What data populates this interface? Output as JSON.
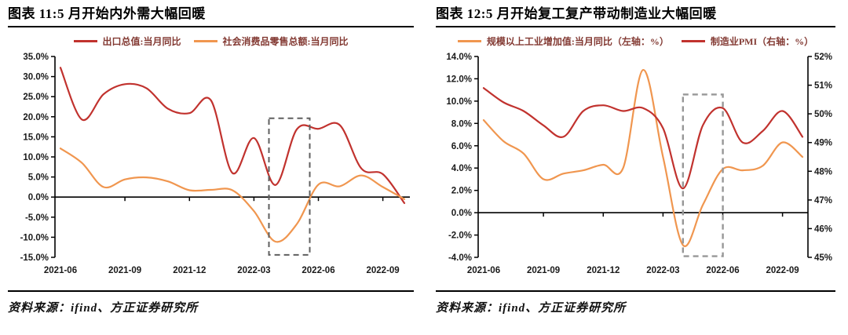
{
  "source_note": "资料来源：ifind、方正证券研究所",
  "colors": {
    "line_red": "#c1322e",
    "line_orange": "#f0964f",
    "legend_text": "#833a33",
    "axis_text": "#1a1a1a",
    "axis_line": "#000000"
  },
  "chart_data": [
    {
      "type": "line",
      "title": "图表 11:5 月开始内外需大幅回暖",
      "x": [
        "2021-06",
        "2021-07",
        "2021-08",
        "2021-09",
        "2021-10",
        "2021-11",
        "2021-12",
        "2022-01",
        "2022-02",
        "2022-03",
        "2022-04",
        "2022-05",
        "2022-06",
        "2022-07",
        "2022-08",
        "2022-09",
        "2022-10"
      ],
      "x_ticks": {
        "indices": [
          0,
          3,
          6,
          9,
          12,
          15
        ],
        "labels": [
          "2021-06",
          "2021-09",
          "2021-12",
          "2022-03",
          "2022-06",
          "2022-09"
        ]
      },
      "left_axis": {
        "min": -15,
        "max": 35,
        "values": [
          35,
          30,
          25,
          20,
          15,
          10,
          5,
          0,
          -5,
          -10,
          -15
        ],
        "labels": [
          "35.0%",
          "30.0%",
          "25.0%",
          "20.0%",
          "15.0%",
          "10.0%",
          "5.0%",
          "0.0%",
          "-5.0%",
          "-10.0%",
          "-15.0%"
        ]
      },
      "series": [
        {
          "name": "出口总值:当月同比",
          "color": "#c1322e",
          "axis": "left",
          "values": [
            32.2,
            19.3,
            25.6,
            28.1,
            27.1,
            22.0,
            20.9,
            24.1,
            6.0,
            14.7,
            3.0,
            16.9,
            17.0,
            17.9,
            7.1,
            5.7,
            -1.5
          ]
        },
        {
          "name": "社会消费品零售总额:当月同比",
          "color": "#f0964f",
          "axis": "left",
          "values": [
            12.1,
            8.5,
            2.5,
            4.4,
            4.9,
            3.9,
            1.7,
            1.8,
            1.7,
            -3.5,
            -11.1,
            -6.7,
            3.1,
            2.7,
            5.4,
            2.5,
            -0.5
          ]
        }
      ],
      "zero_line": true,
      "grid": false,
      "legend_position": "top",
      "highlight_box": {
        "x0": 9.7,
        "x1": 11.6,
        "y_top": 19.6,
        "y_bottom": -14.4,
        "color": "#5f5f5f",
        "width": 2
      },
      "layout": {
        "left": 60,
        "right": 512
      }
    },
    {
      "type": "line",
      "title": "图表 12:5 月开始复工复产带动制造业大幅回暖",
      "x": [
        "2021-06",
        "2021-07",
        "2021-08",
        "2021-09",
        "2021-10",
        "2021-11",
        "2021-12",
        "2022-01",
        "2022-02",
        "2022-03",
        "2022-04",
        "2022-05",
        "2022-06",
        "2022-07",
        "2022-08",
        "2022-09",
        "2022-10"
      ],
      "x_ticks": {
        "indices": [
          0,
          3,
          6,
          9,
          12,
          15
        ],
        "labels": [
          "2021-06",
          "2021-09",
          "2021-12",
          "2022-03",
          "2022-06",
          "2022-09"
        ]
      },
      "left_axis": {
        "min": -4,
        "max": 14,
        "values": [
          14,
          12,
          10,
          8,
          6,
          4,
          2,
          0,
          -2,
          -4
        ],
        "labels": [
          "14.0%",
          "12.0%",
          "10.0%",
          "8.0%",
          "6.0%",
          "4.0%",
          "2.0%",
          "0.0%",
          "-2.0%",
          "-4.0%"
        ]
      },
      "right_axis": {
        "min": 45,
        "max": 52,
        "values": [
          52,
          51,
          50,
          49,
          48,
          47,
          46,
          45
        ],
        "labels": [
          "52%",
          "51%",
          "50%",
          "49%",
          "48%",
          "47%",
          "46%",
          "45%"
        ]
      },
      "series": [
        {
          "name": "规模以上工业增加值:当月同比（左轴：%）",
          "color": "#f0964f",
          "axis": "left",
          "values": [
            8.3,
            6.4,
            5.3,
            3.0,
            3.5,
            3.8,
            4.3,
            4.0,
            12.8,
            5.0,
            -2.9,
            0.7,
            3.9,
            3.8,
            4.2,
            6.3,
            5.0
          ]
        },
        {
          "name": "制造业PMI（右轴：%）",
          "color": "#c1322e",
          "axis": "right",
          "values": [
            50.9,
            50.4,
            50.1,
            49.6,
            49.2,
            50.1,
            50.3,
            50.1,
            50.2,
            49.5,
            47.4,
            49.6,
            50.2,
            49.0,
            49.4,
            50.1,
            49.2
          ]
        }
      ],
      "zero_line": true,
      "grid": false,
      "legend_position": "top",
      "highlight_box": {
        "x0": 10.0,
        "x1": 12.0,
        "y_top": 10.6,
        "y_bottom": -3.9,
        "color": "#979797",
        "width": 2.4
      },
      "layout": {
        "left": 54,
        "right": 474
      }
    }
  ]
}
